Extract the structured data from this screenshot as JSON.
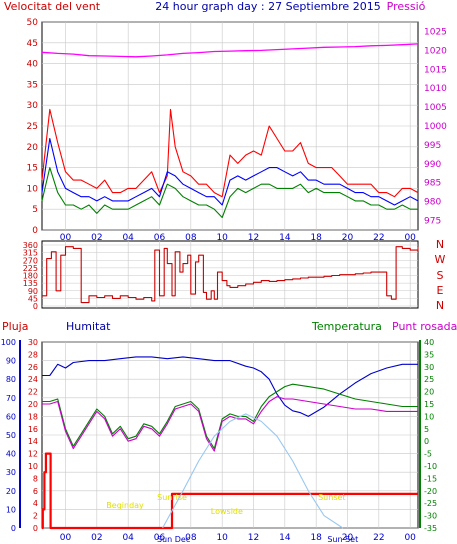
{
  "header": {
    "left_label": "Velocitat del vent",
    "title": "24 hour graph day : 27 Septiembre 2015",
    "right_label": "Pressió"
  },
  "middle": {
    "labels": {
      "pluja": "Pluja",
      "humitat": "Humitat",
      "temperatura": "Temperatura",
      "punt_rosada": "Punt rosada"
    }
  },
  "colors": {
    "wind_gust": "#ff0000",
    "wind_avg": "#0000ff",
    "wind_low": "#008000",
    "pressure": "#ff00ff",
    "direction": "#cc0000",
    "humidity": "#0000cc",
    "temperature": "#008000",
    "dewpoint": "#cc00cc",
    "rain": "#ff0000",
    "sun": "#9ac8f0",
    "sun_labels": "#e0e000",
    "frame": "#000000",
    "grid": "#c8c8c8"
  },
  "chart_data": [
    {
      "type": "line",
      "name": "wind_pressure",
      "x_ticks": [
        "00",
        "02",
        "04",
        "06",
        "08",
        "10",
        "12",
        "14",
        "18",
        "20",
        "22",
        "00"
      ],
      "y_left_ticks": [
        0,
        5,
        10,
        15,
        20,
        25,
        30,
        35,
        40,
        45,
        50
      ],
      "y_left_range": [
        0,
        50
      ],
      "y_right_ticks": [
        975,
        980,
        985,
        990,
        995,
        1000,
        1005,
        1010,
        1015,
        1020,
        1025
      ],
      "y_right_range": [
        972.5,
        1027.5
      ],
      "series": [
        {
          "key": "gust",
          "axis": "left",
          "color": "#ff0000",
          "x": [
            0,
            0.5,
            1,
            1.5,
            2,
            2.5,
            3,
            3.5,
            4,
            4.5,
            5,
            5.5,
            6,
            6.5,
            7,
            7.5,
            8,
            8.2,
            8.5,
            9,
            9.5,
            10,
            10.5,
            11,
            11.5,
            12,
            12.5,
            13,
            13.5,
            14,
            14.5,
            15,
            15.5,
            16,
            16.5,
            17,
            17.5,
            18,
            18.5,
            19,
            19.5,
            20,
            20.5,
            21,
            21.5,
            22,
            22.5,
            23,
            23.5,
            24
          ],
          "y": [
            12,
            29,
            21,
            14,
            12,
            12,
            11,
            10,
            12,
            9,
            9,
            10,
            10,
            12,
            14,
            9,
            13,
            29,
            20,
            14,
            13,
            11,
            11,
            9,
            8,
            18,
            16,
            18,
            19,
            18,
            25,
            22,
            19,
            19,
            21,
            16,
            15,
            15,
            15,
            13,
            11,
            11,
            11,
            11,
            9,
            9,
            8,
            10,
            10,
            9
          ]
        },
        {
          "key": "avg",
          "axis": "left",
          "color": "#0000ff",
          "x": [
            0,
            0.5,
            1,
            1.5,
            2,
            2.5,
            3,
            3.5,
            4,
            4.5,
            5,
            5.5,
            6,
            6.5,
            7,
            7.5,
            8,
            8.5,
            9,
            9.5,
            10,
            10.5,
            11,
            11.5,
            12,
            12.5,
            13,
            13.5,
            14,
            14.5,
            15,
            15.5,
            16,
            16.5,
            17,
            17.5,
            18,
            18.5,
            19,
            19.5,
            20,
            20.5,
            21,
            21.5,
            22,
            22.5,
            23,
            23.5,
            24
          ],
          "y": [
            9,
            22,
            14,
            10,
            9,
            8,
            8,
            7,
            8,
            7,
            7,
            7,
            8,
            9,
            10,
            8,
            14,
            13,
            11,
            10,
            9,
            8,
            8,
            6,
            12,
            13,
            12,
            13,
            14,
            15,
            15,
            14,
            13,
            14,
            12,
            12,
            11,
            11,
            11,
            10,
            9,
            9,
            8,
            8,
            7,
            6,
            7,
            8,
            7
          ]
        },
        {
          "key": "low",
          "axis": "left",
          "color": "#008000",
          "x": [
            0,
            0.5,
            1,
            1.5,
            2,
            2.5,
            3,
            3.5,
            4,
            4.5,
            5,
            5.5,
            6,
            6.5,
            7,
            7.5,
            8,
            8.5,
            9,
            9.5,
            10,
            10.5,
            11,
            11.5,
            12,
            12.5,
            13,
            13.5,
            14,
            14.5,
            15,
            15.5,
            16,
            16.5,
            17,
            17.5,
            18,
            18.5,
            19,
            19.5,
            20,
            20.5,
            21,
            21.5,
            22,
            22.5,
            23,
            23.5,
            24
          ],
          "y": [
            7,
            15,
            9,
            6,
            6,
            5,
            6,
            4,
            6,
            5,
            5,
            5,
            6,
            7,
            8,
            6,
            11,
            10,
            8,
            7,
            6,
            6,
            5,
            3,
            8,
            10,
            9,
            10,
            11,
            11,
            10,
            10,
            10,
            11,
            9,
            10,
            9,
            9,
            9,
            8,
            7,
            7,
            6,
            6,
            5,
            5,
            6,
            5,
            5
          ]
        },
        {
          "key": "pressure",
          "axis": "right",
          "color": "#ff00ff",
          "x": [
            0,
            1,
            2,
            3,
            4,
            5,
            6,
            7,
            8,
            9,
            10,
            11,
            12,
            13,
            14,
            15,
            16,
            17,
            18,
            19,
            20,
            21,
            22,
            23,
            24
          ],
          "y": [
            1019.5,
            1019.2,
            1019.0,
            1018.6,
            1018.5,
            1018.4,
            1018.3,
            1018.5,
            1018.8,
            1019.2,
            1019.4,
            1019.7,
            1019.8,
            1019.9,
            1020.0,
            1020.2,
            1020.4,
            1020.6,
            1020.8,
            1020.9,
            1021.0,
            1021.2,
            1021.3,
            1021.5,
            1021.7
          ]
        }
      ]
    },
    {
      "type": "line",
      "name": "wind_direction",
      "x_ticks": [
        "00",
        "02",
        "04",
        "06",
        "08",
        "10",
        "12",
        "14",
        "18",
        "20",
        "22",
        "00"
      ],
      "y_ticks": [
        0,
        45,
        90,
        135,
        180,
        225,
        270,
        315,
        360
      ],
      "compass_labels": [
        "N",
        "W",
        "S",
        "E",
        "N"
      ],
      "y_range": [
        0,
        360
      ],
      "series": [
        {
          "key": "direction",
          "color": "#cc0000",
          "x": [
            0,
            0.3,
            0.6,
            0.9,
            1.2,
            1.5,
            2,
            2.5,
            3,
            3.5,
            4,
            4.5,
            5,
            5.5,
            6,
            6.5,
            7,
            7.2,
            7.5,
            7.8,
            8,
            8.3,
            8.5,
            8.8,
            9,
            9.3,
            9.5,
            9.8,
            10,
            10.3,
            10.5,
            10.8,
            11,
            11.2,
            11.5,
            11.8,
            12,
            12.5,
            13,
            13.5,
            14,
            14.5,
            15,
            15.5,
            16,
            16.5,
            17,
            17.5,
            18,
            18.5,
            19,
            19.5,
            20,
            20.5,
            21,
            21.5,
            22,
            22.3,
            22.6,
            23,
            23.5,
            24
          ],
          "y": [
            60,
            280,
            320,
            90,
            300,
            350,
            340,
            20,
            60,
            50,
            60,
            45,
            60,
            50,
            40,
            50,
            30,
            330,
            60,
            340,
            250,
            60,
            320,
            200,
            250,
            300,
            70,
            260,
            300,
            80,
            40,
            90,
            40,
            200,
            150,
            120,
            110,
            120,
            130,
            140,
            150,
            145,
            150,
            155,
            160,
            165,
            170,
            170,
            175,
            180,
            185,
            185,
            190,
            195,
            200,
            200,
            60,
            40,
            350,
            340,
            330,
            350
          ]
        }
      ]
    },
    {
      "type": "line",
      "name": "temp_humidity_rain",
      "x_ticks": [
        "00",
        "02",
        "04",
        "06",
        "08",
        "10",
        "12",
        "14",
        "18",
        "20",
        "22",
        "00"
      ],
      "y_humidity_ticks": [
        0,
        10,
        20,
        30,
        40,
        50,
        60,
        70,
        80,
        90,
        100
      ],
      "y_rain_ticks": [
        0,
        2,
        4,
        6,
        8,
        10,
        12,
        14,
        16,
        18,
        20,
        22,
        24,
        26,
        28,
        30
      ],
      "y_temp_ticks": [
        -35,
        -30,
        -25,
        -20,
        -15,
        -10,
        -5,
        0,
        5,
        10,
        15,
        20,
        25,
        30,
        35,
        40
      ],
      "sun_labels": {
        "begin": "Beginday",
        "sunrise": "Sunrise",
        "lowsun": "Lowside",
        "sunset": "Sunset",
        "sun_dec": "Sun Dec",
        "sun_set2": "Sun Set"
      },
      "series": [
        {
          "key": "humidity",
          "axis": "humidity",
          "color": "#0000cc",
          "x": [
            0,
            0.5,
            1,
            1.5,
            2,
            3,
            4,
            5,
            6,
            7,
            8,
            9,
            10,
            11,
            12,
            13,
            13.5,
            14,
            14.5,
            15,
            15.5,
            16,
            16.5,
            17,
            18,
            19,
            20,
            21,
            22,
            23,
            24
          ],
          "y": [
            82,
            82,
            88,
            86,
            89,
            90,
            90,
            91,
            92,
            92,
            91,
            92,
            91,
            90,
            90,
            87,
            86,
            84,
            80,
            72,
            66,
            63,
            62,
            60,
            65,
            72,
            78,
            83,
            86,
            88,
            88
          ]
        },
        {
          "key": "temperature",
          "axis": "temp",
          "color": "#008000",
          "x": [
            0,
            0.5,
            1,
            1.5,
            2,
            2.5,
            3,
            3.5,
            4,
            4.5,
            5,
            5.5,
            6,
            6.5,
            7,
            7.5,
            8,
            8.5,
            9,
            9.5,
            10,
            10.5,
            11,
            11.5,
            12,
            12.5,
            13,
            13.5,
            14,
            14.5,
            15,
            15.5,
            16,
            17,
            18,
            19,
            20,
            21,
            22,
            23,
            24
          ],
          "y": [
            16,
            16,
            17,
            5,
            -2,
            3,
            8,
            13,
            10,
            3,
            6,
            1,
            2,
            7,
            6,
            3,
            8,
            14,
            15,
            16,
            13,
            2,
            -3,
            9,
            11,
            10,
            10,
            8,
            14,
            18,
            20,
            22,
            23,
            22,
            21,
            19,
            17,
            16,
            15,
            14,
            14
          ]
        },
        {
          "key": "dewpoint",
          "axis": "temp",
          "color": "#cc00cc",
          "x": [
            0,
            0.5,
            1,
            1.5,
            2,
            2.5,
            3,
            3.5,
            4,
            4.5,
            5,
            5.5,
            6,
            6.5,
            7,
            7.5,
            8,
            8.5,
            9,
            9.5,
            10,
            10.5,
            11,
            11.5,
            12,
            12.5,
            13,
            13.5,
            14,
            14.5,
            15,
            15.5,
            16,
            17,
            18,
            19,
            20,
            21,
            22,
            23,
            24
          ],
          "y": [
            15,
            15,
            16,
            4,
            -3,
            2,
            7,
            12,
            9,
            2,
            5,
            0,
            1,
            6,
            5,
            2,
            7,
            13,
            14,
            15,
            12,
            1,
            -4,
            8,
            10,
            9,
            9,
            7,
            12,
            16,
            18,
            17,
            17,
            16,
            15,
            14,
            13,
            13,
            12,
            12,
            12
          ]
        },
        {
          "key": "rain",
          "axis": "rain",
          "color": "#ff0000",
          "x": [
            0,
            0.05,
            0.15,
            0.25,
            0.5,
            0.55,
            0.6,
            2,
            4,
            6,
            7.5,
            8.2,
            8.3,
            10,
            12,
            14,
            18,
            20,
            22,
            24
          ],
          "y": [
            0,
            3,
            9,
            12,
            12,
            0,
            0,
            0,
            0,
            0,
            0,
            0,
            5.5,
            5.5,
            5.5,
            5.5,
            5.5,
            5.5,
            5.5,
            5.5
          ]
        },
        {
          "key": "sun",
          "axis": "temp",
          "color": "#9ac8f0",
          "x": [
            7.7,
            9,
            10,
            11,
            12,
            13,
            14,
            15,
            16,
            17,
            18,
            19.2
          ],
          "y": [
            -35,
            -20,
            -8,
            2,
            8,
            11,
            8,
            2,
            -8,
            -20,
            -30,
            -35
          ]
        }
      ]
    }
  ]
}
